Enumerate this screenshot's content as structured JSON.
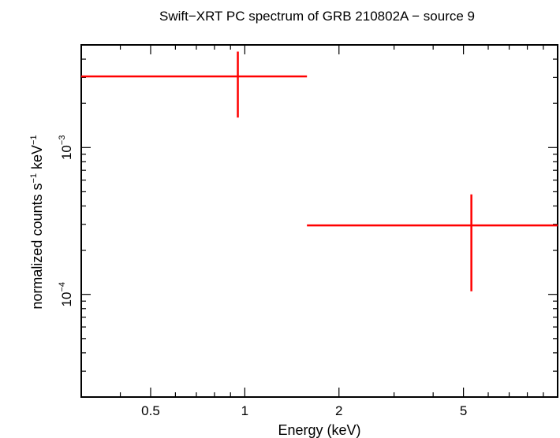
{
  "chart_data": {
    "type": "scatter",
    "title": "Swift−XRT PC spectrum of GRB 210802A − source 9",
    "xlabel": "Energy (keV)",
    "ylabel_parts": [
      "normalized counts s",
      "−1",
      " keV",
      "−1"
    ],
    "x_scale": "log",
    "y_scale": "log",
    "xlim": [
      0.3,
      10
    ],
    "ylim": [
      2e-05,
      0.005
    ],
    "x_ticks": [
      {
        "value": 0.5,
        "label": "0.5"
      },
      {
        "value": 1,
        "label": "1"
      },
      {
        "value": 2,
        "label": "2"
      },
      {
        "value": 5,
        "label": "5"
      }
    ],
    "y_ticks": [
      {
        "value": 0.001,
        "base": "10",
        "exp": "−3"
      },
      {
        "value": 0.0001,
        "base": "10",
        "exp": "−4"
      }
    ],
    "grid": false,
    "series": [
      {
        "color": "#ff0000",
        "points": [
          {
            "x": 0.95,
            "xlo": 0.3,
            "xhi": 1.58,
            "y": 0.00305,
            "ylo": 0.0016,
            "yhi": 0.0045
          },
          {
            "x": 5.3,
            "xlo": 1.58,
            "xhi": 10,
            "y": 0.000295,
            "ylo": 0.000105,
            "yhi": 0.00048
          }
        ]
      }
    ]
  }
}
